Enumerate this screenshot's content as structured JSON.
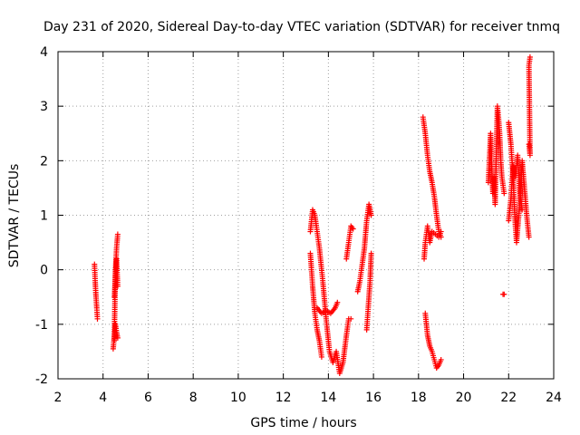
{
  "chart_data": {
    "type": "scatter",
    "title": "Day 231 of 2020, Sidereal Day-to-day VTEC variation (SDTVAR) for receiver tnmq",
    "xlabel": "GPS time / hours",
    "ylabel": "SDTVAR / TECUs",
    "xlim": [
      2,
      24
    ],
    "ylim": [
      -2,
      4
    ],
    "xticks": [
      2,
      4,
      6,
      8,
      10,
      12,
      14,
      16,
      18,
      20,
      22,
      24
    ],
    "yticks": [
      -2,
      -1,
      0,
      1,
      2,
      3,
      4
    ],
    "xtick_labels": [
      "2",
      "4",
      "6",
      "8",
      "10",
      "12",
      "14",
      "16",
      "18",
      "20",
      "22",
      "24"
    ],
    "ytick_labels": [
      "-2",
      "-1",
      "0",
      "1",
      "2",
      "3",
      "4"
    ],
    "grid": true,
    "legend": null,
    "marker": "+",
    "color": "#ff0000",
    "series": [
      {
        "name": "SDTVAR",
        "segments": [
          [
            [
              3.62,
              0.1
            ],
            [
              3.65,
              -0.2
            ],
            [
              3.68,
              -0.45
            ],
            [
              3.72,
              -0.7
            ],
            [
              3.75,
              -0.9
            ]
          ],
          [
            [
              4.45,
              -1.45
            ],
            [
              4.5,
              -1.2
            ],
            [
              4.55,
              0.0
            ],
            [
              4.6,
              0.4
            ],
            [
              4.65,
              0.65
            ]
          ],
          [
            [
              4.5,
              -0.5
            ],
            [
              4.55,
              -0.1
            ],
            [
              4.6,
              0.2
            ],
            [
              4.65,
              -0.3
            ]
          ],
          [
            [
              4.5,
              -1.3
            ],
            [
              4.55,
              -1.0
            ],
            [
              4.6,
              -1.15
            ],
            [
              4.65,
              -1.25
            ]
          ],
          [
            [
              13.2,
              0.7
            ],
            [
              13.3,
              1.1
            ],
            [
              13.4,
              1.0
            ],
            [
              13.5,
              0.7
            ],
            [
              13.6,
              0.4
            ],
            [
              13.75,
              -0.2
            ],
            [
              13.9,
              -0.9
            ],
            [
              14.05,
              -1.5
            ],
            [
              14.2,
              -1.7
            ],
            [
              14.35,
              -1.5
            ],
            [
              14.5,
              -1.9
            ],
            [
              14.65,
              -1.7
            ],
            [
              14.8,
              -1.2
            ],
            [
              14.9,
              -0.9
            ],
            [
              15.0,
              -0.9
            ]
          ],
          [
            [
              13.2,
              0.3
            ],
            [
              13.3,
              -0.3
            ],
            [
              13.4,
              -0.8
            ],
            [
              13.5,
              -1.1
            ],
            [
              13.6,
              -1.3
            ],
            [
              13.7,
              -1.6
            ]
          ],
          [
            [
              13.5,
              -0.7
            ],
            [
              13.7,
              -0.8
            ],
            [
              13.9,
              -0.75
            ],
            [
              14.1,
              -0.8
            ],
            [
              14.3,
              -0.7
            ],
            [
              14.4,
              -0.6
            ]
          ],
          [
            [
              14.8,
              0.2
            ],
            [
              14.9,
              0.5
            ],
            [
              15.0,
              0.8
            ],
            [
              15.1,
              0.75
            ]
          ],
          [
            [
              15.3,
              -0.4
            ],
            [
              15.4,
              -0.2
            ],
            [
              15.5,
              0.1
            ],
            [
              15.6,
              0.4
            ],
            [
              15.7,
              0.9
            ],
            [
              15.8,
              1.2
            ],
            [
              15.9,
              1.0
            ]
          ],
          [
            [
              15.7,
              -1.1
            ],
            [
              15.75,
              -0.8
            ],
            [
              15.8,
              -0.5
            ],
            [
              15.85,
              -0.2
            ],
            [
              15.9,
              0.3
            ]
          ],
          [
            [
              18.2,
              2.8
            ],
            [
              18.3,
              2.5
            ],
            [
              18.4,
              2.1
            ],
            [
              18.5,
              1.8
            ],
            [
              18.6,
              1.6
            ],
            [
              18.7,
              1.35
            ],
            [
              18.8,
              1.0
            ],
            [
              18.9,
              0.7
            ],
            [
              19.0,
              0.6
            ]
          ],
          [
            [
              18.25,
              0.2
            ],
            [
              18.3,
              0.5
            ],
            [
              18.4,
              0.8
            ],
            [
              18.5,
              0.5
            ],
            [
              18.6,
              0.7
            ],
            [
              18.75,
              0.65
            ],
            [
              18.9,
              0.6
            ],
            [
              19.0,
              0.7
            ]
          ],
          [
            [
              18.3,
              -0.8
            ],
            [
              18.4,
              -1.2
            ],
            [
              18.5,
              -1.4
            ],
            [
              18.6,
              -1.5
            ],
            [
              18.7,
              -1.65
            ],
            [
              18.8,
              -1.8
            ],
            [
              18.9,
              -1.75
            ],
            [
              19.0,
              -1.65
            ]
          ],
          [
            [
              21.1,
              1.6
            ],
            [
              21.2,
              2.5
            ],
            [
              21.25,
              1.9
            ],
            [
              21.3,
              1.4
            ],
            [
              21.35,
              1.7
            ],
            [
              21.4,
              1.2
            ],
            [
              21.5,
              3.0
            ],
            [
              21.55,
              2.8
            ],
            [
              21.6,
              2.5
            ],
            [
              21.65,
              2.0
            ],
            [
              21.7,
              1.7
            ],
            [
              21.8,
              1.4
            ]
          ],
          [
            [
              21.75,
              -0.45
            ],
            [
              21.8,
              -0.45
            ]
          ],
          [
            [
              22.0,
              2.7
            ],
            [
              22.1,
              2.3
            ],
            [
              22.2,
              1.7
            ],
            [
              22.25,
              1.2
            ],
            [
              22.3,
              0.8
            ],
            [
              22.35,
              0.5
            ],
            [
              22.45,
              1.0
            ],
            [
              22.55,
              1.6
            ],
            [
              22.6,
              2.0
            ],
            [
              22.7,
              1.5
            ],
            [
              22.8,
              1.0
            ],
            [
              22.9,
              0.6
            ]
          ],
          [
            [
              22.0,
              0.9
            ],
            [
              22.1,
              1.3
            ],
            [
              22.2,
              1.9
            ],
            [
              22.3,
              1.7
            ],
            [
              22.4,
              2.1
            ],
            [
              22.5,
              1.4
            ],
            [
              22.6,
              1.1
            ]
          ],
          [
            [
              22.9,
              2.3
            ],
            [
              22.95,
              2.1
            ],
            [
              22.9,
              3.75
            ],
            [
              22.95,
              3.9
            ]
          ]
        ]
      }
    ]
  }
}
